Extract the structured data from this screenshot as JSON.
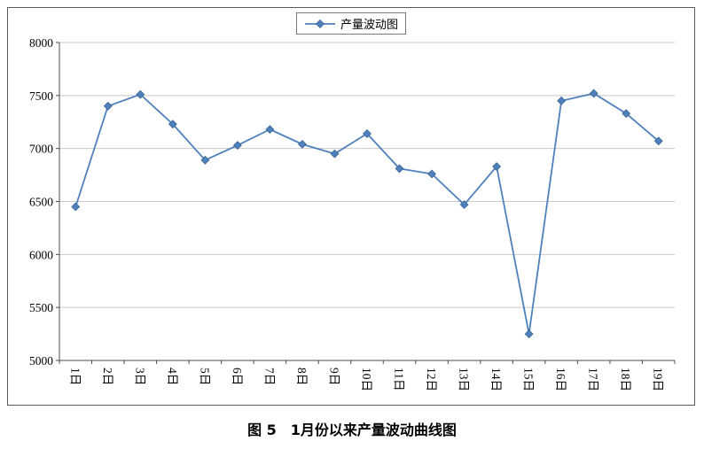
{
  "caption": "图 5　1月份以来产量波动曲线图",
  "chart_data": {
    "type": "line",
    "title": "图 5　1月份以来产量波动曲线图",
    "legend": "产量波动图",
    "legend_position": "top",
    "grid": true,
    "categories": [
      "1日",
      "2日",
      "3日",
      "4日",
      "5日",
      "6日",
      "7日",
      "8日",
      "9日",
      "10日",
      "11日",
      "12日",
      "13日",
      "14日",
      "15日",
      "16日",
      "17日",
      "18日",
      "19日"
    ],
    "values": [
      6450,
      7400,
      7510,
      7230,
      6890,
      7030,
      7180,
      7040,
      6950,
      7140,
      6810,
      6760,
      6470,
      6830,
      5250,
      7450,
      7520,
      7330,
      7070
    ],
    "xlabel": "",
    "ylabel": "",
    "ylim": [
      5000,
      8000
    ],
    "yticks": [
      5000,
      5500,
      6000,
      6500,
      7000,
      7500,
      8000
    ],
    "line_color": "#4F81BD",
    "marker_color": "#4F81BD",
    "marker_edge_color": "#35618F",
    "grid_color": "#c9c9c9",
    "axis_color": "#4d4d4d"
  }
}
